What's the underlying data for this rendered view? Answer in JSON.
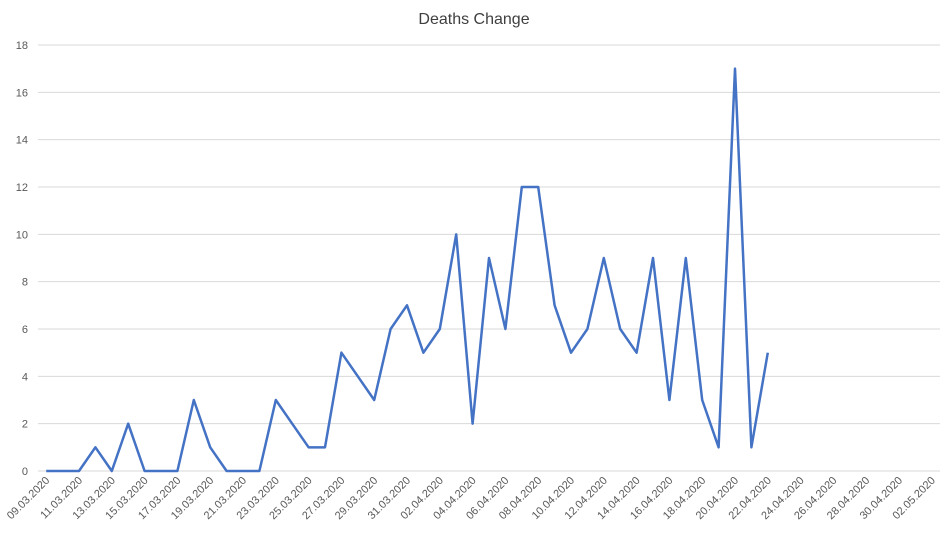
{
  "chart_data": {
    "type": "line",
    "title": "Deaths Change",
    "categories": [
      "09.03.2020",
      null,
      "11.03.2020",
      null,
      "13.03.2020",
      null,
      "15.03.2020",
      null,
      "17.03.2020",
      null,
      "19.03.2020",
      null,
      "21.03.2020",
      null,
      "23.03.2020",
      null,
      "25.03.2020",
      null,
      "27.03.2020",
      null,
      "29.03.2020",
      null,
      "31.03.2020",
      null,
      "02.04.2020",
      null,
      "04.04.2020",
      null,
      "06.04.2020",
      null,
      "08.04.2020",
      null,
      "10.04.2020",
      null,
      "12.04.2020",
      null,
      "14.04.2020",
      null,
      "16.04.2020",
      null,
      "18.04.2020",
      null,
      "20.04.2020",
      null,
      "22.04.2020",
      null,
      "24.04.2020",
      null,
      "26.04.2020",
      null,
      "28.04.2020",
      null,
      "30.04.2020",
      null,
      "02.05.2020"
    ],
    "series": [
      {
        "name": "Deaths Change",
        "color": "#4472c4",
        "values": [
          0,
          0,
          0,
          1,
          0,
          2,
          0,
          0,
          0,
          3,
          1,
          0,
          0,
          0,
          3,
          2,
          1,
          1,
          5,
          4,
          3,
          6,
          7,
          5,
          6,
          10,
          2,
          9,
          6,
          12,
          12,
          7,
          5,
          6,
          9,
          6,
          5,
          9,
          3,
          9,
          3,
          1,
          17,
          1,
          5,
          null,
          null,
          null,
          null,
          null,
          null,
          null,
          null,
          null,
          null
        ]
      }
    ],
    "ylim": [
      0,
      18
    ],
    "yticks": [
      0,
      2,
      4,
      6,
      8,
      10,
      12,
      14,
      16,
      18
    ],
    "grid": true
  }
}
